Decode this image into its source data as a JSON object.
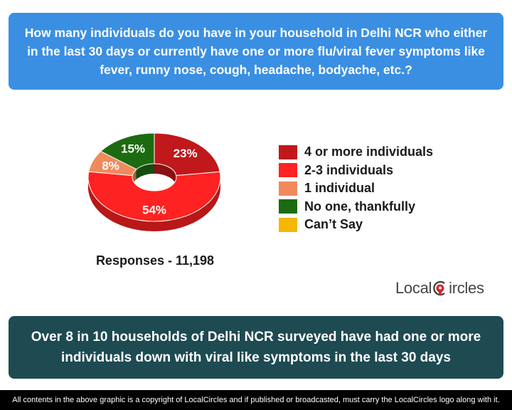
{
  "question": "How many individuals do you have in your household in Delhi NCR who either in the last 30 days or currently have one or more flu/viral fever symptoms like fever, runny nose, cough, headache, bodyache, etc.?",
  "chart_data": {
    "type": "pie",
    "categories": [
      "4 or more individuals",
      "2-3 individuals",
      "1 individual",
      "No one, thankfully",
      "Can’t Say"
    ],
    "values": [
      23,
      54,
      8,
      15,
      0
    ],
    "labels": [
      "23%",
      "54%",
      "8%",
      "15%",
      ""
    ],
    "colors": [
      "#c0181b",
      "#ff2222",
      "#f08a5d",
      "#1d6b10",
      "#f5b800"
    ],
    "legend_position": "right",
    "donut": true
  },
  "responses": "Responses - 11,198",
  "logo": {
    "text_left": "Local",
    "text_right": "ircles"
  },
  "conclusion": "Over 8 in 10 households of Delhi NCR surveyed have had one or more individuals down with viral like symptoms in the last 30 days",
  "footer": "All contents in the above graphic is a copyright of LocalCircles and if published or broadcasted, must carry the LocalCircles logo along with it."
}
